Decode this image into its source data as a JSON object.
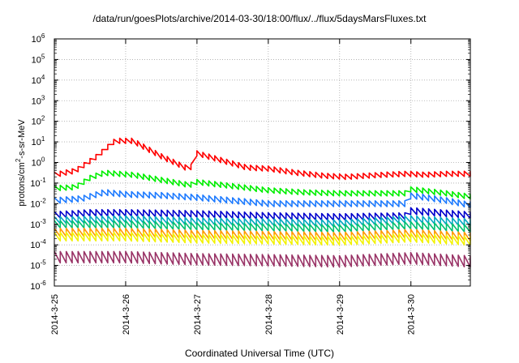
{
  "chart_data": {
    "type": "line",
    "title": "/data/run/goesPlots/archive/2014-03-30/18:00/flux/../flux/5daysMarsFluxes.txt",
    "xlabel": "Coordinated Universal Time (UTC)",
    "ylabel": {
      "base": "protons/cm",
      "sup": "2",
      "rest": "-s-sr-MeV"
    },
    "yscale": "log",
    "ylim": [
      1e-06,
      1000000.0
    ],
    "xlim": [
      "2014-03-25 00:00",
      "2014-03-30 20:00"
    ],
    "y_ticks": [
      {
        "value": 1e-06,
        "base": "10",
        "exp": "-6"
      },
      {
        "value": 1e-05,
        "base": "10",
        "exp": "-5"
      },
      {
        "value": 0.0001,
        "base": "10",
        "exp": "-4"
      },
      {
        "value": 0.001,
        "base": "10",
        "exp": "-3"
      },
      {
        "value": 0.01,
        "base": "10",
        "exp": "-2"
      },
      {
        "value": 0.1,
        "base": "10",
        "exp": "-1"
      },
      {
        "value": 1.0,
        "base": "10",
        "exp": "0"
      },
      {
        "value": 10.0,
        "base": "10",
        "exp": "1"
      },
      {
        "value": 100.0,
        "base": "10",
        "exp": "2"
      },
      {
        "value": 1000.0,
        "base": "10",
        "exp": "3"
      },
      {
        "value": 10000.0,
        "base": "10",
        "exp": "4"
      },
      {
        "value": 100000.0,
        "base": "10",
        "exp": "5"
      },
      {
        "value": 1000000.0,
        "base": "10",
        "exp": "6"
      }
    ],
    "x_ticks": [
      {
        "value": 0,
        "label": "2014-3-25"
      },
      {
        "value": 1,
        "label": "2014-3-26"
      },
      {
        "value": 2,
        "label": "2014-3-27"
      },
      {
        "value": 3,
        "label": "2014-3-28"
      },
      {
        "value": 4,
        "label": "2014-3-29"
      },
      {
        "value": 5,
        "label": "2014-3-30"
      }
    ],
    "grid": true,
    "legend": "none",
    "series": [
      {
        "color": "#ff0000",
        "base_log": [
          [
            0,
            -0.6
          ],
          [
            0.3,
            -0.4
          ],
          [
            0.6,
            0.3
          ],
          [
            0.85,
            1.05
          ],
          [
            1.1,
            1.05
          ],
          [
            1.5,
            0.3
          ],
          [
            1.9,
            -0.35
          ],
          [
            2.0,
            0.45
          ],
          [
            2.3,
            0.15
          ],
          [
            2.7,
            -0.25
          ],
          [
            3.0,
            -0.3
          ],
          [
            3.4,
            -0.5
          ],
          [
            3.8,
            -0.65
          ],
          [
            4.1,
            -0.7
          ],
          [
            4.6,
            -0.6
          ],
          [
            4.95,
            -0.55
          ],
          [
            5.2,
            -0.6
          ],
          [
            5.5,
            -0.55
          ],
          [
            5.8,
            -0.55
          ]
        ],
        "amp": 0.25
      },
      {
        "color": "#00ee00",
        "base_log": [
          [
            0,
            -1.25
          ],
          [
            0.3,
            -1.2
          ],
          [
            0.5,
            -0.75
          ],
          [
            0.7,
            -0.5
          ],
          [
            1.1,
            -0.6
          ],
          [
            1.5,
            -0.85
          ],
          [
            1.9,
            -1.1
          ],
          [
            2.0,
            -0.95
          ],
          [
            2.5,
            -1.15
          ],
          [
            3.0,
            -1.35
          ],
          [
            3.5,
            -1.45
          ],
          [
            4.0,
            -1.5
          ],
          [
            4.5,
            -1.5
          ],
          [
            4.95,
            -1.5
          ],
          [
            5.0,
            -1.3
          ],
          [
            5.5,
            -1.5
          ],
          [
            5.8,
            -1.65
          ]
        ],
        "amp": 0.25
      },
      {
        "color": "#1e7bff",
        "base_log": [
          [
            0,
            -1.85
          ],
          [
            0.4,
            -1.75
          ],
          [
            0.7,
            -1.45
          ],
          [
            1.0,
            -1.55
          ],
          [
            1.5,
            -1.6
          ],
          [
            2.0,
            -1.7
          ],
          [
            2.5,
            -1.85
          ],
          [
            3.0,
            -2.0
          ],
          [
            3.5,
            -2.0
          ],
          [
            4.0,
            -2.0
          ],
          [
            4.95,
            -2.0
          ],
          [
            5.0,
            -1.6
          ],
          [
            5.5,
            -1.85
          ],
          [
            5.8,
            -2.05
          ]
        ],
        "amp": 0.28
      },
      {
        "color": "#0000cc",
        "base_log": [
          [
            0,
            -2.55
          ],
          [
            0.5,
            -2.45
          ],
          [
            1.0,
            -2.45
          ],
          [
            2.0,
            -2.5
          ],
          [
            3.0,
            -2.6
          ],
          [
            4.0,
            -2.65
          ],
          [
            4.95,
            -2.6
          ],
          [
            5.0,
            -2.35
          ],
          [
            5.8,
            -2.55
          ]
        ],
        "amp": 0.32
      },
      {
        "color": "#00a7c0",
        "base_log": [
          [
            0,
            -2.8
          ],
          [
            1.0,
            -2.75
          ],
          [
            2.0,
            -2.85
          ],
          [
            3.0,
            -2.9
          ],
          [
            4.0,
            -2.95
          ],
          [
            5.0,
            -2.75
          ],
          [
            5.8,
            -2.9
          ]
        ],
        "amp": 0.33
      },
      {
        "color": "#00c070",
        "base_log": [
          [
            0,
            -3.0
          ],
          [
            1.0,
            -3.0
          ],
          [
            2.0,
            -3.1
          ],
          [
            3.0,
            -3.15
          ],
          [
            4.0,
            -3.2
          ],
          [
            5.0,
            -3.05
          ],
          [
            5.8,
            -3.2
          ]
        ],
        "amp": 0.35
      },
      {
        "color": "#ff9900",
        "base_log": [
          [
            0,
            -3.4
          ],
          [
            1.0,
            -3.4
          ],
          [
            2.0,
            -3.5
          ],
          [
            3.0,
            -3.55
          ],
          [
            4.0,
            -3.6
          ],
          [
            5.0,
            -3.45
          ],
          [
            5.8,
            -3.6
          ]
        ],
        "amp": 0.4
      },
      {
        "color": "#f2f200",
        "base_log": [
          [
            0,
            -3.6
          ],
          [
            1.0,
            -3.6
          ],
          [
            2.0,
            -3.7
          ],
          [
            3.0,
            -3.75
          ],
          [
            4.0,
            -3.8
          ],
          [
            5.0,
            -3.65
          ],
          [
            5.8,
            -3.8
          ]
        ],
        "amp": 0.42
      },
      {
        "color": "#993366",
        "base_log": [
          [
            0,
            -4.6
          ],
          [
            1.0,
            -4.6
          ],
          [
            2.0,
            -4.7
          ],
          [
            3.0,
            -4.75
          ],
          [
            4.0,
            -4.8
          ],
          [
            5.0,
            -4.65
          ],
          [
            5.8,
            -4.8
          ]
        ],
        "amp": 0.55
      }
    ],
    "period_days": 0.0833
  }
}
